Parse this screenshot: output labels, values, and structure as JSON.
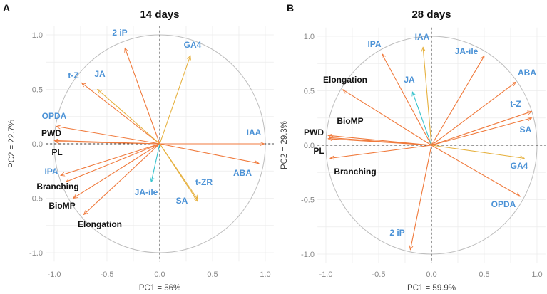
{
  "colors": {
    "orange": "#f07a3c",
    "yellow": "#e6b13f",
    "teal": "#35c2cc",
    "variable_label": "#4b92d6",
    "response_label": "#111111",
    "circle": "#bdbdbd",
    "grid": "#ececec"
  },
  "chart_data": [
    {
      "type": "scatter",
      "subtype": "pca-correlation-circle",
      "panel": "A",
      "title": "14 days",
      "xlabel": "PC1 = 56%",
      "ylabel": "PC2 = 22.7%",
      "xlim": [
        -1,
        1
      ],
      "ylim": [
        -1,
        1
      ],
      "xticks": [
        "-1.0",
        "-0.5",
        "0.0",
        "0.5",
        "1.0"
      ],
      "yticks": [
        "1.0",
        "0.5",
        "0.0",
        "-0.5",
        "-1.0"
      ],
      "grid": true,
      "vectors": [
        {
          "label": "2 iP",
          "x": -0.33,
          "y": 0.88,
          "kind": "variable",
          "color": "orange"
        },
        {
          "label": "GA4",
          "x": 0.29,
          "y": 0.81,
          "kind": "variable",
          "color": "yellow"
        },
        {
          "label": "t-Z",
          "x": -0.74,
          "y": 0.56,
          "kind": "variable",
          "color": "orange"
        },
        {
          "label": "JA",
          "x": -0.59,
          "y": 0.5,
          "kind": "variable",
          "color": "yellow"
        },
        {
          "label": "OPDA",
          "x": -0.98,
          "y": 0.16,
          "kind": "variable",
          "color": "orange"
        },
        {
          "label": "PWD",
          "x": -1.0,
          "y": 0.03,
          "kind": "response",
          "color": "orange"
        },
        {
          "label": "PL",
          "x": -0.99,
          "y": 0.02,
          "kind": "response",
          "color": "orange"
        },
        {
          "label": "IAA",
          "x": 0.99,
          "y": 0.0,
          "kind": "variable",
          "color": "orange"
        },
        {
          "label": "ABA",
          "x": 0.94,
          "y": -0.18,
          "kind": "variable",
          "color": "orange"
        },
        {
          "label": "IPA",
          "x": -0.94,
          "y": -0.29,
          "kind": "variable",
          "color": "orange"
        },
        {
          "label": "Branching",
          "x": -0.89,
          "y": -0.35,
          "kind": "response",
          "color": "orange"
        },
        {
          "label": "BioMP",
          "x": -0.82,
          "y": -0.5,
          "kind": "response",
          "color": "orange"
        },
        {
          "label": "Elongation",
          "x": -0.72,
          "y": -0.65,
          "kind": "response",
          "color": "orange"
        },
        {
          "label": "JA-ile",
          "x": -0.08,
          "y": -0.35,
          "kind": "variable",
          "color": "teal"
        },
        {
          "label": "t-ZR",
          "x": 0.36,
          "y": -0.51,
          "kind": "variable",
          "color": "yellow"
        },
        {
          "label": "SA",
          "x": 0.36,
          "y": -0.53,
          "kind": "variable",
          "color": "yellow"
        }
      ]
    },
    {
      "type": "scatter",
      "subtype": "pca-correlation-circle",
      "panel": "B",
      "title": "28 days",
      "xlabel": "PC1 = 59.9%",
      "ylabel": "PC2 = 29.3%",
      "xlim": [
        -1,
        1
      ],
      "ylim": [
        -1,
        1
      ],
      "xticks": [
        "-1.0",
        "-0.5",
        "0.0",
        "0.5",
        "1.0"
      ],
      "yticks": [
        "1.0",
        "0.5",
        "0.0",
        "-0.5",
        "-1.0"
      ],
      "grid": true,
      "vectors": [
        {
          "label": "IPA",
          "x": -0.47,
          "y": 0.84,
          "kind": "variable",
          "color": "orange"
        },
        {
          "label": "IAA",
          "x": -0.08,
          "y": 0.9,
          "kind": "variable",
          "color": "yellow"
        },
        {
          "label": "JA-ile",
          "x": 0.5,
          "y": 0.82,
          "kind": "variable",
          "color": "orange"
        },
        {
          "label": "ABA",
          "x": 0.8,
          "y": 0.58,
          "kind": "variable",
          "color": "orange"
        },
        {
          "label": "JA",
          "x": -0.18,
          "y": 0.49,
          "kind": "variable",
          "color": "teal"
        },
        {
          "label": "Elongation",
          "x": -0.84,
          "y": 0.51,
          "kind": "response",
          "color": "orange"
        },
        {
          "label": "t-Z",
          "x": 0.95,
          "y": 0.31,
          "kind": "variable",
          "color": "orange"
        },
        {
          "label": "SA",
          "x": 0.95,
          "y": 0.25,
          "kind": "variable",
          "color": "orange"
        },
        {
          "label": "BioMP",
          "x": -0.97,
          "y": 0.07,
          "kind": "response",
          "color": "orange"
        },
        {
          "label": "PWD",
          "x": -0.98,
          "y": 0.09,
          "kind": "response",
          "color": "orange"
        },
        {
          "label": "PL",
          "x": -0.98,
          "y": 0.06,
          "kind": "response",
          "color": "orange"
        },
        {
          "label": "Branching",
          "x": -0.96,
          "y": -0.12,
          "kind": "response",
          "color": "orange"
        },
        {
          "label": "GA4",
          "x": 0.88,
          "y": -0.12,
          "kind": "variable",
          "color": "yellow"
        },
        {
          "label": "OPDA",
          "x": 0.84,
          "y": -0.47,
          "kind": "variable",
          "color": "orange"
        },
        {
          "label": "2 iP",
          "x": -0.2,
          "y": -0.96,
          "kind": "variable",
          "color": "orange"
        }
      ]
    }
  ]
}
